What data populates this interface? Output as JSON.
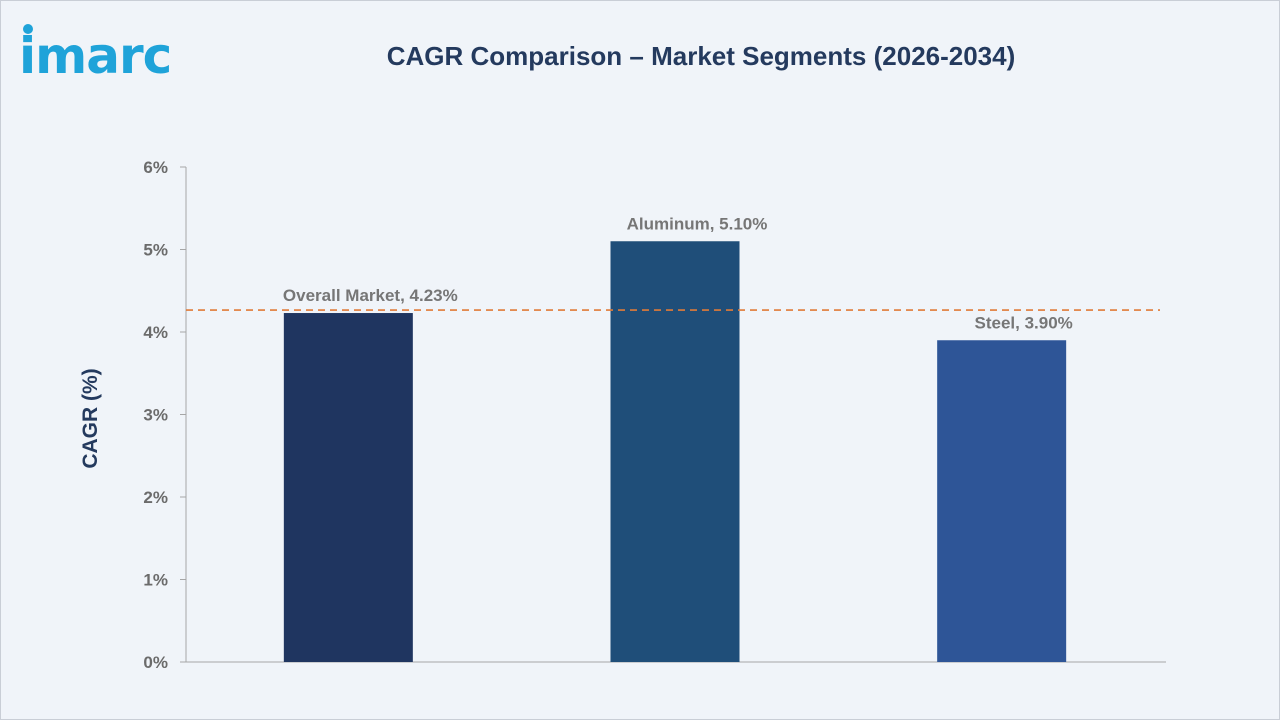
{
  "brand": {
    "logo_text": "imarc",
    "logo_color": "#1fa3d9"
  },
  "title": "CAGR Comparison – Market Segments (2026-2034)",
  "chart_data": {
    "type": "bar",
    "categories": [
      "Overall Market",
      "Aluminum",
      "Steel"
    ],
    "values": [
      4.23,
      5.1,
      3.9
    ],
    "data_labels": [
      "Overall Market, 4.23%",
      "Aluminum, 5.10%",
      "Steel, 3.90%"
    ],
    "colors": [
      "#1f3560",
      "#1f4e79",
      "#2e5597"
    ],
    "title": "CAGR Comparison – Market Segments (2026-2034)",
    "xlabel": "",
    "ylabel": "CAGR (%)",
    "ylim": [
      0,
      6
    ],
    "yticks": [
      0,
      1,
      2,
      3,
      4,
      5,
      6
    ],
    "ytick_labels": [
      "0%",
      "1%",
      "2%",
      "3%",
      "4%",
      "5%",
      "6%"
    ],
    "reference_line": {
      "value": 4.23,
      "style": "dashed",
      "color": "#e07b39"
    },
    "grid": false,
    "legend": "none"
  }
}
